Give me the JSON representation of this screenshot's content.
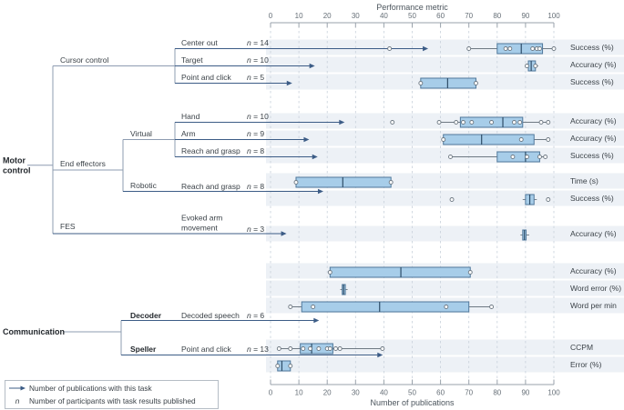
{
  "axes": {
    "top": {
      "title": "Performance metric",
      "ticks": [
        0,
        10,
        20,
        30,
        40,
        50,
        60,
        70,
        80,
        90,
        100
      ],
      "range": [
        0,
        100
      ]
    },
    "bottom": {
      "title": "Number of publications",
      "ticks": [
        0,
        10,
        20,
        30,
        40,
        50,
        60,
        70,
        80,
        90,
        100
      ],
      "range": [
        0,
        100
      ]
    }
  },
  "tree": {
    "motor_control": "Motor control",
    "communication": "Communication",
    "cursor_control": "Cursor control",
    "end_effectors": "End effectors",
    "fes": "FES",
    "virtual": "Virtual",
    "robotic": "Robotic",
    "decoder": "Decoder",
    "speller": "Speller"
  },
  "legend": {
    "arrow_label": "Number of publications with this task",
    "n_symbol": "n",
    "n_label": "Number of participants with task results published"
  },
  "colors": {
    "box_fill": "#a7cde9",
    "box_stroke": "#50789b",
    "median": "#2e4d68",
    "whisker": "#6e7983",
    "arrow": "#3c5c86",
    "tree_line": "#8e9cb1",
    "stripe": "#edf1f6",
    "grid": "#c7d0da",
    "axis": "#99a2ab",
    "tick_text": "#666f77",
    "title_text": "#4b545c"
  },
  "chart_data": {
    "type": "boxplot",
    "value_axis": "top",
    "note": "box = {q1, median, q3}; whiskers/points/outliers in performance-metric units (0-100); publications_arrow in number-of-publications units (0-100)",
    "rows": [
      {
        "group": "Cursor control",
        "task": "Center out",
        "n": 14,
        "n_label": "n = 14",
        "metric": "Success (%)",
        "publications_arrow": 55,
        "box": {
          "q1": 80,
          "median": 88.5,
          "q3": 96
        },
        "whiskers": [
          70,
          100
        ],
        "points": [
          70,
          83,
          84.5,
          92.5,
          94,
          95,
          100
        ],
        "outliers": [
          42
        ]
      },
      {
        "group": "Cursor control",
        "task": "Target",
        "n": 10,
        "n_label": "n = 10",
        "metric": "Accuracy (%)",
        "publications_arrow": 15,
        "box": {
          "q1": 91,
          "median": 92,
          "q3": 93.5
        },
        "whiskers": [
          90,
          94.5
        ],
        "points": [
          90.5,
          93.5
        ],
        "outliers": []
      },
      {
        "group": "Cursor control",
        "task": "Point and click",
        "n": 5,
        "n_label": "n = 5",
        "metric": "Success (%)",
        "publications_arrow": 7,
        "box": {
          "q1": 53,
          "median": 62.5,
          "q3": 72.5
        },
        "whiskers": [
          53,
          72.5
        ],
        "points": [
          53,
          72.5
        ],
        "outliers": []
      },
      {
        "group": "Virtual",
        "task": "Hand",
        "n": 10,
        "n_label": "n = 10",
        "metric": "Accuracy (%)",
        "publications_arrow": 25.5,
        "box": {
          "q1": 67,
          "median": 82,
          "q3": 89
        },
        "whiskers": [
          59.5,
          98
        ],
        "points": [
          59.5,
          65.5,
          68,
          71,
          78,
          86,
          88,
          95.5,
          98
        ],
        "outliers": [
          43
        ]
      },
      {
        "group": "Virtual",
        "task": "Arm",
        "n": 9,
        "n_label": "n = 9",
        "metric": "Accuracy (%)",
        "publications_arrow": 13,
        "box": {
          "q1": 61,
          "median": 74.5,
          "q3": 93
        },
        "whiskers": [
          61,
          98
        ],
        "points": [
          61,
          88.5,
          98
        ],
        "outliers": []
      },
      {
        "group": "Virtual",
        "task": "Reach and grasp",
        "n": 8,
        "n_label": "n = 8",
        "metric": "Success (%)",
        "publications_arrow": 16,
        "box": {
          "q1": 80,
          "median": 90,
          "q3": 95
        },
        "whiskers": [
          63.5,
          97
        ],
        "points": [
          63.5,
          85.5,
          90.5,
          95,
          97
        ],
        "outliers": []
      },
      {
        "group": "Robotic",
        "task": "Reach and grasp",
        "n": 8,
        "n_label": "n = 8",
        "metric": "Time (s)",
        "publications_arrow": 18,
        "box": {
          "q1": 9,
          "median": 25.5,
          "q3": 42.5
        },
        "whiskers": [
          9,
          42.5
        ],
        "points": [
          9,
          42.5
        ],
        "outliers": []
      },
      {
        "group": "Robotic",
        "metric": "Success (%)",
        "box": {
          "q1": 90,
          "median": 91.5,
          "q3": 93
        },
        "whiskers": [
          89,
          94
        ],
        "points": [],
        "outliers": [
          64,
          98
        ]
      },
      {
        "group": "FES",
        "task": "Evoked arm movement",
        "n": 3,
        "n_label": "n = 3",
        "metric": "Accuracy (%)",
        "publications_arrow": 5,
        "box": {
          "q1": 89,
          "median": 89.6,
          "q3": 90.2
        },
        "whiskers": [
          88.2,
          91.3
        ],
        "points": [],
        "outliers": []
      },
      {
        "group": "Decoder",
        "metric": "Accuracy (%)",
        "box": {
          "q1": 21,
          "median": 46,
          "q3": 70.5
        },
        "whiskers": [
          21,
          70.5
        ],
        "points": [
          21,
          70.5
        ],
        "outliers": []
      },
      {
        "group": "Decoder",
        "metric": "Word error (%)",
        "box": {
          "q1": 25.3,
          "median": 25.8,
          "q3": 26.4
        },
        "whiskers": [
          24.6,
          27.2
        ],
        "points": [],
        "outliers": []
      },
      {
        "group": "Decoder",
        "metric": "Word per min",
        "box": {
          "q1": 11,
          "median": 38.5,
          "q3": 70
        },
        "whiskers": [
          7,
          78
        ],
        "points": [
          7,
          15,
          62,
          78
        ],
        "outliers": []
      },
      {
        "group": "Decoder",
        "task": "Decoded speech",
        "n": 6,
        "n_label": "n = 6",
        "publications_arrow": 16.5
      },
      {
        "group": "Speller",
        "task": "Point and click",
        "n": 13,
        "n_label": "n = 13",
        "metric": "CCPM",
        "publications_arrow": 39,
        "box": {
          "q1": 10.5,
          "median": 14.5,
          "q3": 22
        },
        "whiskers": [
          3,
          39.5
        ],
        "points": [
          3,
          7,
          11.5,
          14,
          17,
          20,
          21,
          23,
          24.5,
          39.5
        ],
        "outliers": []
      },
      {
        "group": "Speller",
        "metric": "Error (%)",
        "box": {
          "q1": 2.5,
          "median": 4,
          "q3": 7
        },
        "whiskers": [
          2.5,
          7
        ],
        "points": [
          2.5,
          7
        ],
        "outliers": []
      }
    ]
  }
}
